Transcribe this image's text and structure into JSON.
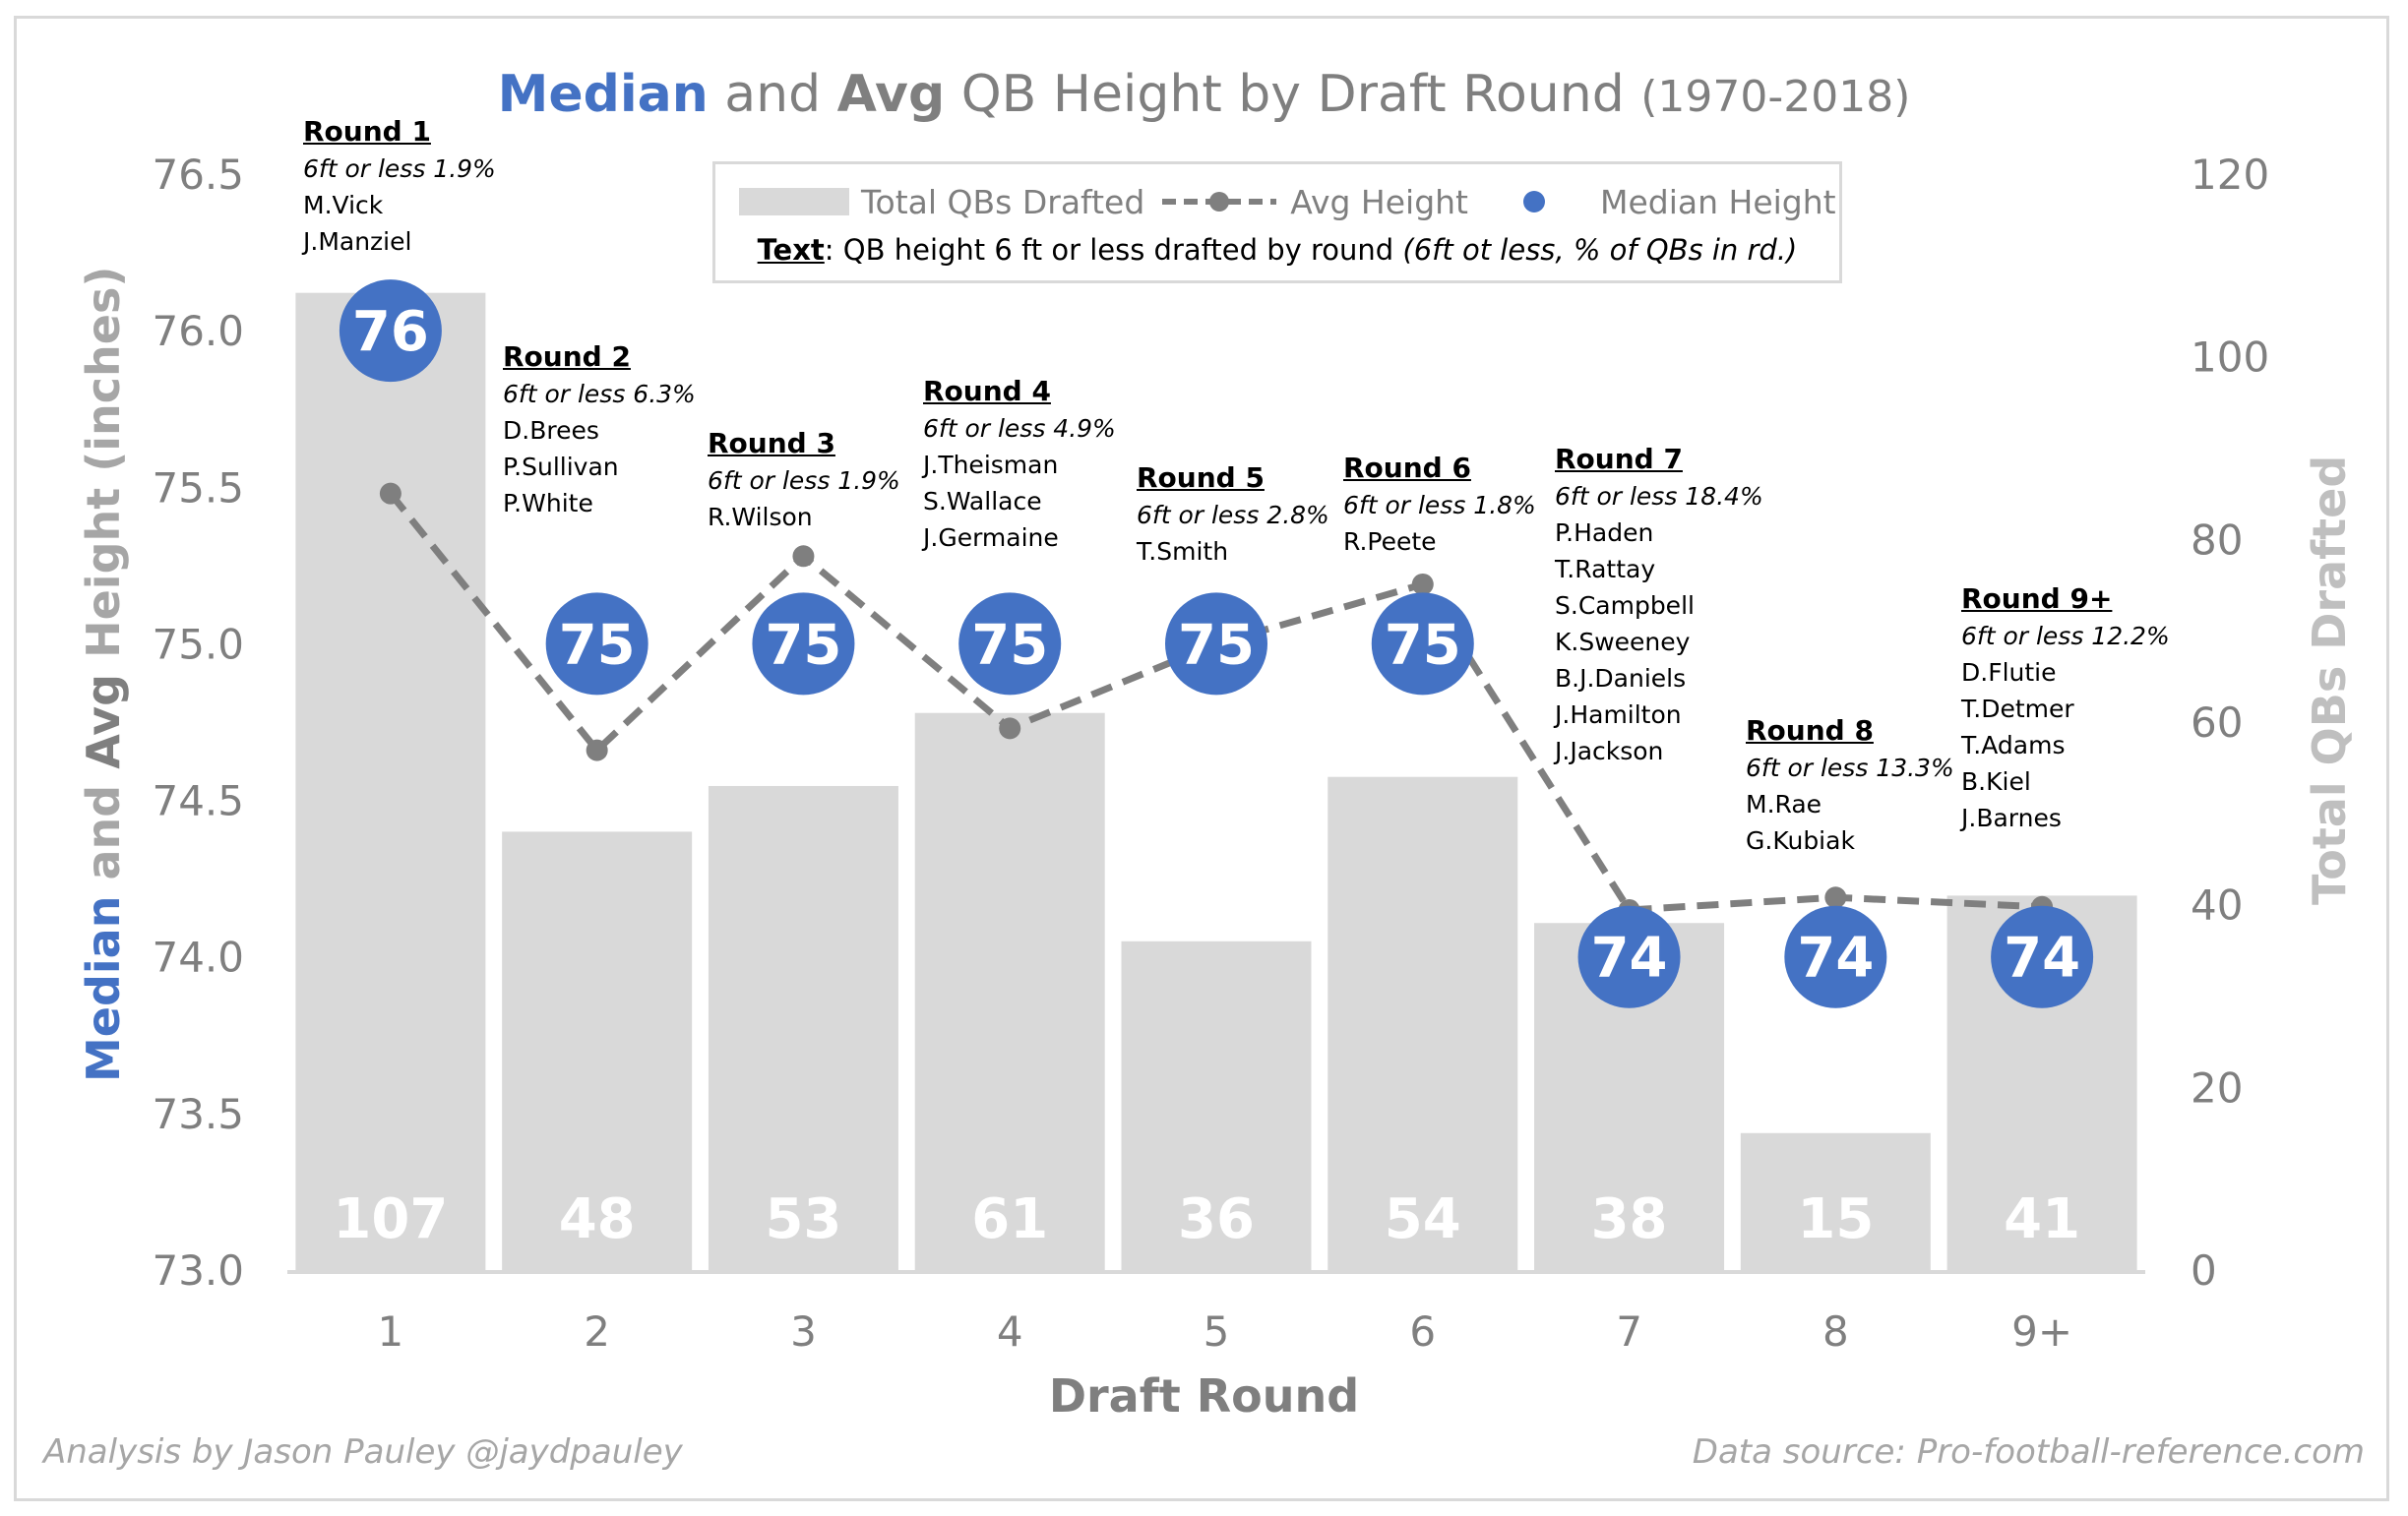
{
  "chart_data": {
    "type": "bar+line+scatter",
    "title": {
      "median": "Median",
      "and": "and",
      "avg": "Avg",
      "rest": "QB Height by Draft Round",
      "years": "(1970-2018)"
    },
    "xlabel": "Draft Round",
    "ylabel_left": {
      "median": "Median",
      "and": "and",
      "avg": "Avg",
      "rest": "Height (inches)"
    },
    "ylabel_right": "Total QBs Drafted",
    "categories": [
      "1",
      "2",
      "3",
      "4",
      "5",
      "6",
      "7",
      "8",
      "9+"
    ],
    "ylim_left": [
      73.0,
      76.5
    ],
    "ylim_right": [
      0,
      120
    ],
    "yticks_left": [
      "76.5",
      "76.0",
      "75.5",
      "75.0",
      "74.5",
      "74.0",
      "73.5",
      "73.0"
    ],
    "yticks_right": [
      "120",
      "100",
      "80",
      "60",
      "40",
      "20",
      "0"
    ],
    "series": [
      {
        "name": "Total QBs Drafted",
        "type": "bar",
        "axis": "right",
        "values": [
          107,
          48,
          53,
          61,
          36,
          54,
          38,
          15,
          41
        ]
      },
      {
        "name": "Avg Height",
        "type": "line",
        "axis": "left",
        "values": [
          75.48,
          74.66,
          75.28,
          74.73,
          75.0,
          75.19,
          74.15,
          74.19,
          74.16
        ]
      },
      {
        "name": "Median Height",
        "type": "scatter",
        "axis": "left",
        "values": [
          76,
          75,
          75,
          75,
          75,
          75,
          74,
          74,
          74
        ]
      }
    ],
    "legend": {
      "position": "top-center",
      "items": [
        "Total QBs Drafted",
        "Avg Height",
        "Median Height"
      ],
      "note_label": "Text",
      "note_text": ": QB height 6 ft or less drafted by round ",
      "note_italic": "(6ft ot less, % of QBs in rd.)"
    },
    "colors": {
      "median": "#4472c4",
      "avg": "#7f7f7f",
      "bars": "#d9d9d9"
    },
    "annotations": [
      {
        "heading": "Round 1",
        "pct": "6ft or less 1.9%",
        "names": [
          "M.Vick",
          "J.Manziel"
        ]
      },
      {
        "heading": "Round 2",
        "pct": "6ft or less 6.3%",
        "names": [
          "D.Brees",
          "P.Sullivan",
          "P.White"
        ]
      },
      {
        "heading": "Round 3",
        "pct": "6ft or less 1.9%",
        "names": [
          "R.Wilson"
        ]
      },
      {
        "heading": "Round 4",
        "pct": "6ft or less 4.9%",
        "names": [
          "J.Theisman",
          "S.Wallace",
          "J.Germaine"
        ]
      },
      {
        "heading": "Round 5",
        "pct": "6ft or less 2.8%",
        "names": [
          "T.Smith"
        ]
      },
      {
        "heading": "Round 6",
        "pct": "6ft or less 1.8%",
        "names": [
          "R.Peete"
        ]
      },
      {
        "heading": "Round 7",
        "pct": "6ft or less 18.4%",
        "names": [
          "P.Haden",
          "T.Rattay",
          "S.Campbell",
          "K.Sweeney",
          "B.J.Daniels",
          "J.Hamilton",
          "J.Jackson"
        ]
      },
      {
        "heading": "Round 8",
        "pct": "6ft or less 13.3%",
        "names": [
          "M.Rae",
          "G.Kubiak"
        ]
      },
      {
        "heading": "Round 9+",
        "pct": "6ft or less 12.2%",
        "names": [
          "D.Flutie",
          "T.Detmer",
          "T.Adams",
          "B.Kiel",
          "J.Barnes"
        ]
      }
    ]
  },
  "footer": {
    "left": "Analysis by Jason Pauley @jaydpauley",
    "right": "Data source: Pro-football-reference.com"
  }
}
